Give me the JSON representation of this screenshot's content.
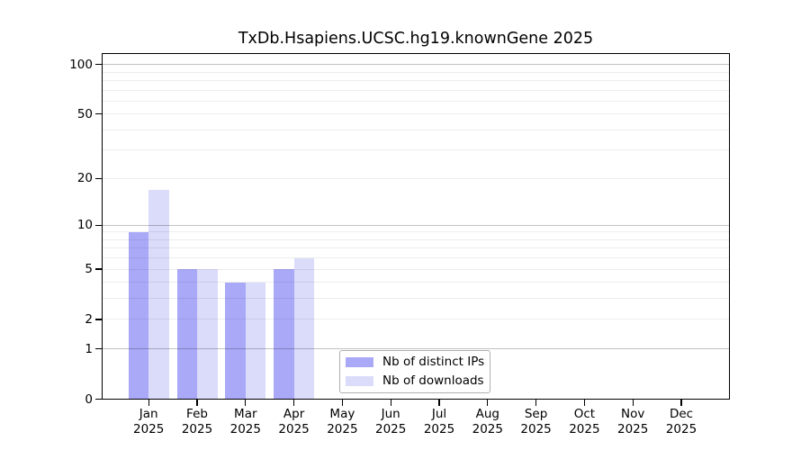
{
  "figure": {
    "background": "#ffffff"
  },
  "chart_data": {
    "type": "bar",
    "title": "TxDb.Hsapiens.UCSC.hg19.knownGene 2025",
    "categories": [
      "Jan 2025",
      "Feb 2025",
      "Mar 2025",
      "Apr 2025",
      "May 2025",
      "Jun 2025",
      "Jul 2025",
      "Aug 2025",
      "Sep 2025",
      "Oct 2025",
      "Nov 2025",
      "Dec 2025"
    ],
    "series": [
      {
        "name": "Nb of distinct IPs",
        "color": "#a9a9f8",
        "values": [
          9,
          5,
          4,
          5,
          0,
          0,
          0,
          0,
          0,
          0,
          0,
          0
        ]
      },
      {
        "name": "Nb of downloads",
        "color": "#dbdbfa",
        "values": [
          17,
          5,
          4,
          6,
          0,
          0,
          0,
          0,
          0,
          0,
          0,
          0
        ]
      }
    ],
    "xlabel": "",
    "ylabel": "",
    "y_axis": {
      "scale": "log10(x+1)",
      "tick_labels": [
        "100",
        "50",
        "20",
        "10",
        "5",
        "2",
        "1",
        "0"
      ],
      "tick_values": [
        100,
        50,
        20,
        10,
        5,
        2,
        1,
        0
      ],
      "major_gridlines": [
        1,
        10,
        100
      ],
      "minor_gridlines": [
        2,
        3,
        4,
        5,
        6,
        7,
        8,
        9,
        20,
        30,
        40,
        50,
        60,
        70,
        80,
        90
      ],
      "ylim": [
        0,
        117
      ]
    },
    "grid": "horizontal",
    "legend": {
      "position": "inside-bottom-center-left",
      "entries": [
        "Nb of distinct IPs",
        "Nb of downloads"
      ]
    }
  },
  "colors": {
    "axis_frame": "#000000",
    "tick_text": "#000000",
    "major_grid": "rgba(0,0,0,0.24)",
    "minor_grid": "rgba(0,0,0,0.07)",
    "legend_border": "#b0b0b0",
    "legend_background": "#ffffff"
  }
}
